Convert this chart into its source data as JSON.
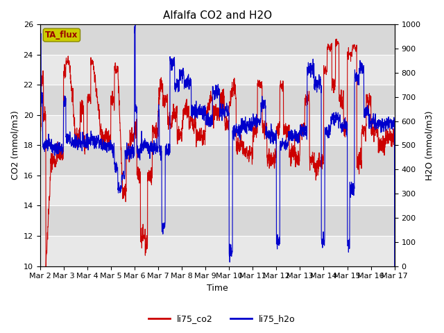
{
  "title": "Alfalfa CO2 and H2O",
  "xlabel": "Time",
  "ylabel_left": "CO2 (mmol/m3)",
  "ylabel_right": "H2O (mmol/m3)",
  "ylim_left": [
    10,
    26
  ],
  "ylim_right": [
    0,
    1000
  ],
  "yticks_left": [
    10,
    12,
    14,
    16,
    18,
    20,
    22,
    24,
    26
  ],
  "yticks_right": [
    0,
    100,
    200,
    300,
    400,
    500,
    600,
    700,
    800,
    900,
    1000
  ],
  "xtick_labels": [
    "Mar 2",
    "Mar 3",
    "Mar 4",
    "Mar 5",
    "Mar 6",
    "Mar 7",
    "Mar 8",
    "Mar 9",
    "Mar 10",
    "Mar 11",
    "Mar 12",
    "Mar 13",
    "Mar 14",
    "Mar 15",
    "Mar 16",
    "Mar 17"
  ],
  "color_co2": "#cc0000",
  "color_h2o": "#0000cc",
  "legend_label_co2": "li75_co2",
  "legend_label_h2o": "li75_h2o",
  "annotation_text": "TA_flux",
  "annotation_bg": "#cccc00",
  "fig_bg_color": "#ffffff",
  "plot_bg_color": "#e8e8e8",
  "band_color_dark": "#d8d8d8",
  "band_color_light": "#e8e8e8",
  "grid_color": "#ffffff",
  "title_fontsize": 11,
  "label_fontsize": 9,
  "tick_fontsize": 8,
  "legend_fontsize": 9
}
